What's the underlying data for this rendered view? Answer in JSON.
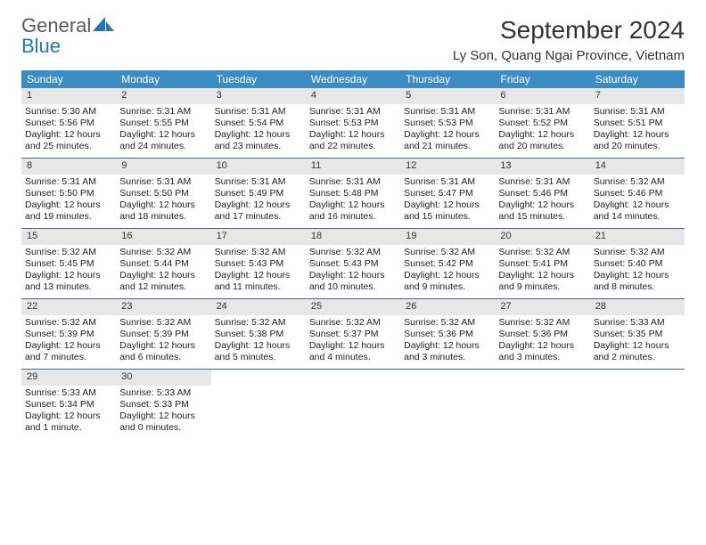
{
  "logo": {
    "word1": "General",
    "word2": "Blue"
  },
  "colors": {
    "header_bg": "#3b8bc4",
    "header_text": "#ffffff",
    "daynum_bg": "#e7e7e7",
    "week_border": "#3b6a9a",
    "logo_gray": "#5a5a5a",
    "logo_blue": "#1f77b4"
  },
  "title": "September 2024",
  "location": "Ly Son, Quang Ngai Province, Vietnam",
  "weekdays": [
    "Sunday",
    "Monday",
    "Tuesday",
    "Wednesday",
    "Thursday",
    "Friday",
    "Saturday"
  ],
  "weeks": [
    [
      {
        "n": "1",
        "sr": "Sunrise: 5:30 AM",
        "ss": "Sunset: 5:56 PM",
        "dl": "Daylight: 12 hours and 25 minutes."
      },
      {
        "n": "2",
        "sr": "Sunrise: 5:31 AM",
        "ss": "Sunset: 5:55 PM",
        "dl": "Daylight: 12 hours and 24 minutes."
      },
      {
        "n": "3",
        "sr": "Sunrise: 5:31 AM",
        "ss": "Sunset: 5:54 PM",
        "dl": "Daylight: 12 hours and 23 minutes."
      },
      {
        "n": "4",
        "sr": "Sunrise: 5:31 AM",
        "ss": "Sunset: 5:53 PM",
        "dl": "Daylight: 12 hours and 22 minutes."
      },
      {
        "n": "5",
        "sr": "Sunrise: 5:31 AM",
        "ss": "Sunset: 5:53 PM",
        "dl": "Daylight: 12 hours and 21 minutes."
      },
      {
        "n": "6",
        "sr": "Sunrise: 5:31 AM",
        "ss": "Sunset: 5:52 PM",
        "dl": "Daylight: 12 hours and 20 minutes."
      },
      {
        "n": "7",
        "sr": "Sunrise: 5:31 AM",
        "ss": "Sunset: 5:51 PM",
        "dl": "Daylight: 12 hours and 20 minutes."
      }
    ],
    [
      {
        "n": "8",
        "sr": "Sunrise: 5:31 AM",
        "ss": "Sunset: 5:50 PM",
        "dl": "Daylight: 12 hours and 19 minutes."
      },
      {
        "n": "9",
        "sr": "Sunrise: 5:31 AM",
        "ss": "Sunset: 5:50 PM",
        "dl": "Daylight: 12 hours and 18 minutes."
      },
      {
        "n": "10",
        "sr": "Sunrise: 5:31 AM",
        "ss": "Sunset: 5:49 PM",
        "dl": "Daylight: 12 hours and 17 minutes."
      },
      {
        "n": "11",
        "sr": "Sunrise: 5:31 AM",
        "ss": "Sunset: 5:48 PM",
        "dl": "Daylight: 12 hours and 16 minutes."
      },
      {
        "n": "12",
        "sr": "Sunrise: 5:31 AM",
        "ss": "Sunset: 5:47 PM",
        "dl": "Daylight: 12 hours and 15 minutes."
      },
      {
        "n": "13",
        "sr": "Sunrise: 5:31 AM",
        "ss": "Sunset: 5:46 PM",
        "dl": "Daylight: 12 hours and 15 minutes."
      },
      {
        "n": "14",
        "sr": "Sunrise: 5:32 AM",
        "ss": "Sunset: 5:46 PM",
        "dl": "Daylight: 12 hours and 14 minutes."
      }
    ],
    [
      {
        "n": "15",
        "sr": "Sunrise: 5:32 AM",
        "ss": "Sunset: 5:45 PM",
        "dl": "Daylight: 12 hours and 13 minutes."
      },
      {
        "n": "16",
        "sr": "Sunrise: 5:32 AM",
        "ss": "Sunset: 5:44 PM",
        "dl": "Daylight: 12 hours and 12 minutes."
      },
      {
        "n": "17",
        "sr": "Sunrise: 5:32 AM",
        "ss": "Sunset: 5:43 PM",
        "dl": "Daylight: 12 hours and 11 minutes."
      },
      {
        "n": "18",
        "sr": "Sunrise: 5:32 AM",
        "ss": "Sunset: 5:43 PM",
        "dl": "Daylight: 12 hours and 10 minutes."
      },
      {
        "n": "19",
        "sr": "Sunrise: 5:32 AM",
        "ss": "Sunset: 5:42 PM",
        "dl": "Daylight: 12 hours and 9 minutes."
      },
      {
        "n": "20",
        "sr": "Sunrise: 5:32 AM",
        "ss": "Sunset: 5:41 PM",
        "dl": "Daylight: 12 hours and 9 minutes."
      },
      {
        "n": "21",
        "sr": "Sunrise: 5:32 AM",
        "ss": "Sunset: 5:40 PM",
        "dl": "Daylight: 12 hours and 8 minutes."
      }
    ],
    [
      {
        "n": "22",
        "sr": "Sunrise: 5:32 AM",
        "ss": "Sunset: 5:39 PM",
        "dl": "Daylight: 12 hours and 7 minutes."
      },
      {
        "n": "23",
        "sr": "Sunrise: 5:32 AM",
        "ss": "Sunset: 5:39 PM",
        "dl": "Daylight: 12 hours and 6 minutes."
      },
      {
        "n": "24",
        "sr": "Sunrise: 5:32 AM",
        "ss": "Sunset: 5:38 PM",
        "dl": "Daylight: 12 hours and 5 minutes."
      },
      {
        "n": "25",
        "sr": "Sunrise: 5:32 AM",
        "ss": "Sunset: 5:37 PM",
        "dl": "Daylight: 12 hours and 4 minutes."
      },
      {
        "n": "26",
        "sr": "Sunrise: 5:32 AM",
        "ss": "Sunset: 5:36 PM",
        "dl": "Daylight: 12 hours and 3 minutes."
      },
      {
        "n": "27",
        "sr": "Sunrise: 5:32 AM",
        "ss": "Sunset: 5:36 PM",
        "dl": "Daylight: 12 hours and 3 minutes."
      },
      {
        "n": "28",
        "sr": "Sunrise: 5:33 AM",
        "ss": "Sunset: 5:35 PM",
        "dl": "Daylight: 12 hours and 2 minutes."
      }
    ],
    [
      {
        "n": "29",
        "sr": "Sunrise: 5:33 AM",
        "ss": "Sunset: 5:34 PM",
        "dl": "Daylight: 12 hours and 1 minute."
      },
      {
        "n": "30",
        "sr": "Sunrise: 5:33 AM",
        "ss": "Sunset: 5:33 PM",
        "dl": "Daylight: 12 hours and 0 minutes."
      },
      null,
      null,
      null,
      null,
      null
    ]
  ]
}
